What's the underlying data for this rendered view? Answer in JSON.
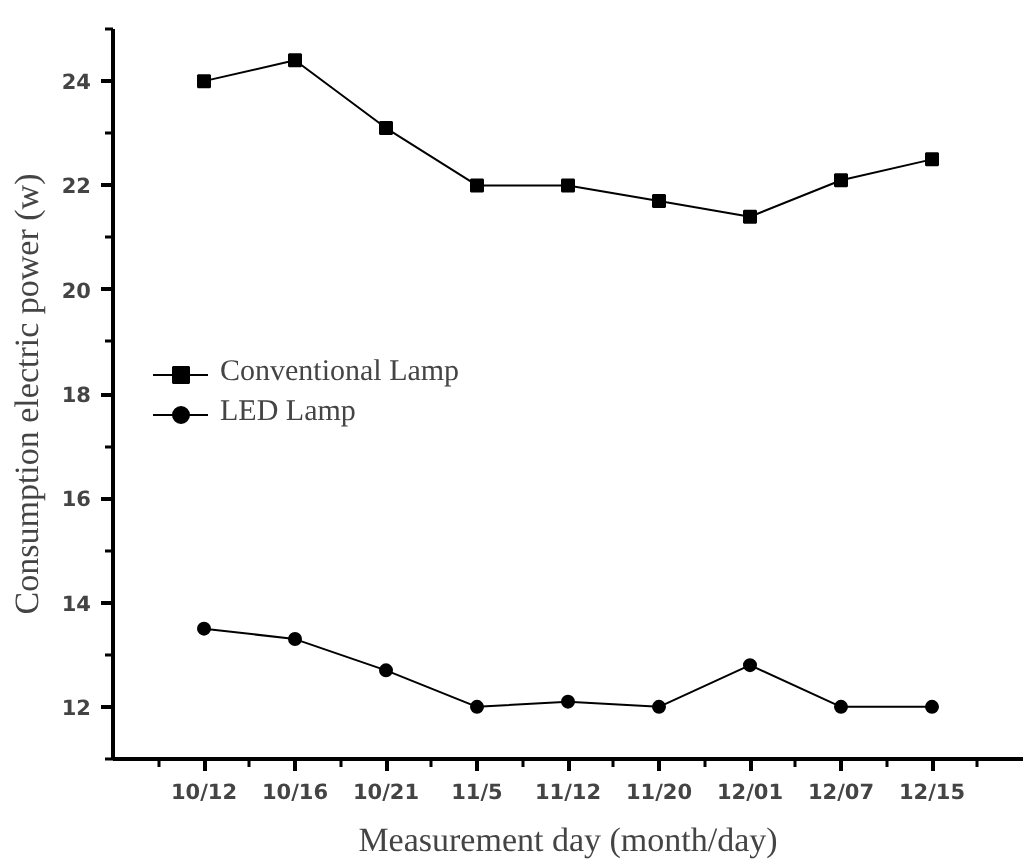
{
  "chart_data": {
    "type": "line",
    "xlabel": "Measurement day (month/day)",
    "ylabel": "Consumption electric power (w)",
    "categories": [
      "10/12",
      "10/16",
      "10/21",
      "11/5",
      "11/12",
      "11/20",
      "12/01",
      "12/07",
      "12/15"
    ],
    "series": [
      {
        "name": "Conventional Lamp",
        "color": "#000000",
        "marker": "square",
        "values": [
          24.0,
          24.4,
          23.1,
          22.0,
          22.0,
          21.7,
          21.4,
          22.1,
          22.5
        ]
      },
      {
        "name": "LED Lamp",
        "color": "#000000",
        "marker": "circle",
        "values": [
          13.5,
          13.3,
          12.7,
          12.0,
          12.1,
          12.0,
          12.8,
          12.0,
          12.0
        ]
      }
    ],
    "ylim": [
      11,
      25
    ],
    "yticks": [
      12,
      14,
      16,
      18,
      20,
      22,
      24
    ],
    "grid": false,
    "legend": "left",
    "line_style": "solid"
  }
}
